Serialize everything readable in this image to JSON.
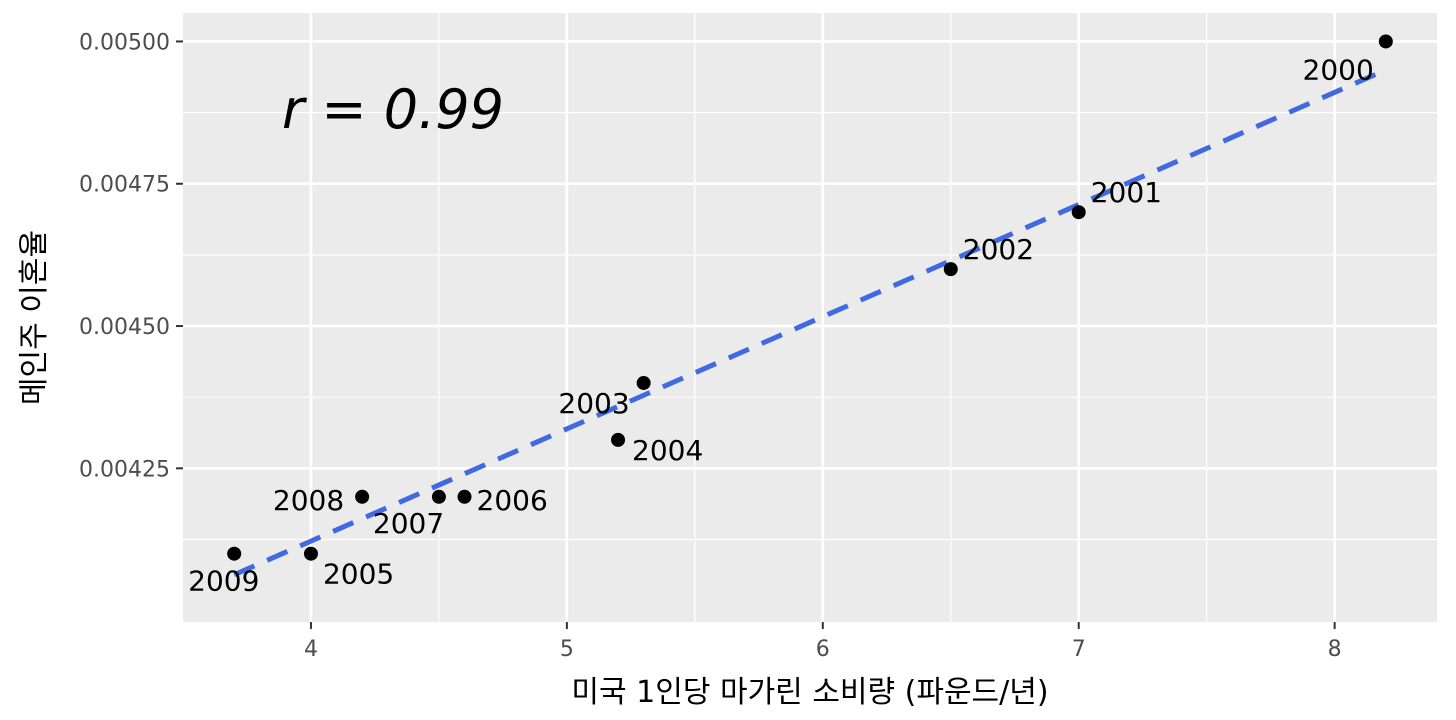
{
  "chart_data": {
    "type": "scatter",
    "xlabel": "미국 1인당 마가린 소비량 (파운드/년)",
    "ylabel": "메인주 이혼율",
    "annotation": "r = 0.99",
    "xlim": [
      3.5,
      8.4
    ],
    "ylim": [
      0.00398,
      0.00505
    ],
    "x_ticks": [
      "4",
      "5",
      "6",
      "7",
      "8"
    ],
    "y_ticks": [
      "0.00425",
      "0.00450",
      "0.00475",
      "0.00500"
    ],
    "grid": true,
    "background": "#ebebeb",
    "point_color": "#000000",
    "trend_color": "#4169e1",
    "trend_line": {
      "x": [
        3.7,
        8.2
      ],
      "y": [
        0.004063,
        0.00495
      ]
    },
    "points": [
      {
        "label": "2000",
        "x": 8.2,
        "y": 0.005
      },
      {
        "label": "2001",
        "x": 7.0,
        "y": 0.0047
      },
      {
        "label": "2002",
        "x": 6.5,
        "y": 0.0046
      },
      {
        "label": "2003",
        "x": 5.3,
        "y": 0.0044
      },
      {
        "label": "2004",
        "x": 5.2,
        "y": 0.0043
      },
      {
        "label": "2005",
        "x": 4.0,
        "y": 0.0041
      },
      {
        "label": "2006",
        "x": 4.6,
        "y": 0.0042
      },
      {
        "label": "2007",
        "x": 4.5,
        "y": 0.0042
      },
      {
        "label": "2008",
        "x": 4.2,
        "y": 0.0042
      },
      {
        "label": "2009",
        "x": 3.7,
        "y": 0.0041
      }
    ]
  }
}
